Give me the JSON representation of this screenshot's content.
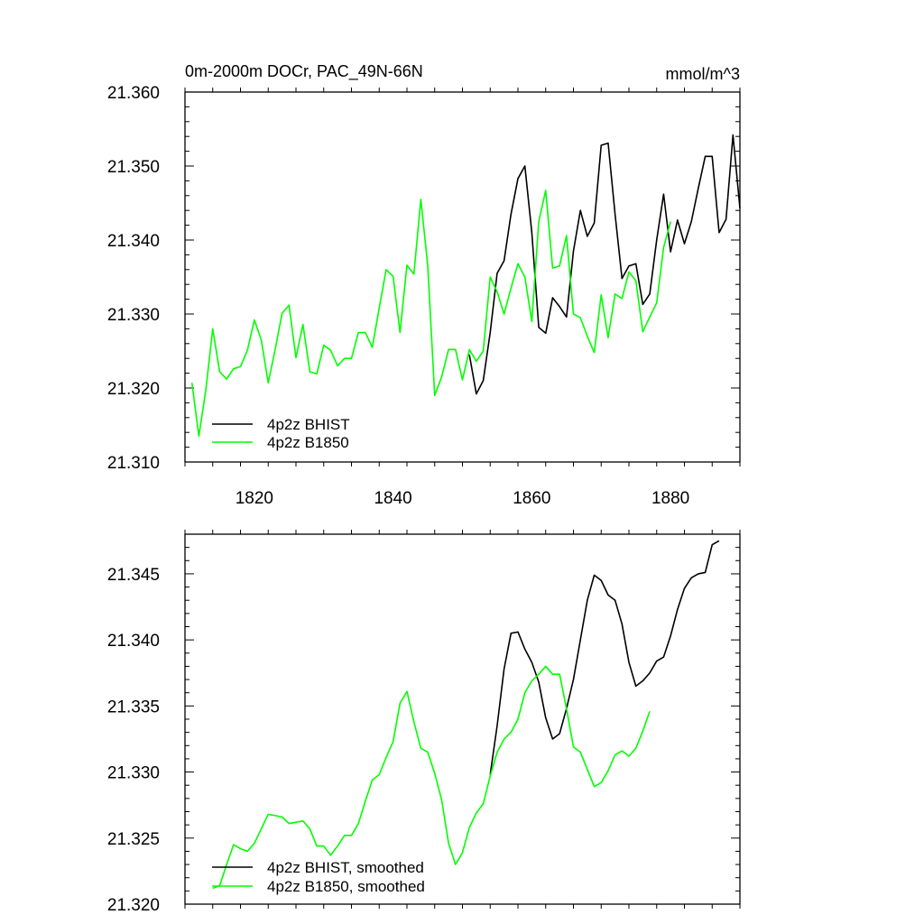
{
  "chart_data": [
    {
      "type": "line",
      "title": "0m-2000m DOCr, PAC_49N-66N",
      "units": "mmol/m^3",
      "xlim": [
        1810,
        1890
      ],
      "ylim": [
        21.31,
        21.36
      ],
      "x_ticks": [
        1820,
        1840,
        1860,
        1880
      ],
      "x_tick_labels": [
        "1820",
        "1840",
        "1860",
        "1880"
      ],
      "y_ticks": [
        21.31,
        21.32,
        21.33,
        21.34,
        21.35,
        21.36
      ],
      "y_tick_labels": [
        "21.310",
        "21.320",
        "21.330",
        "21.340",
        "21.350",
        "21.360"
      ],
      "legend_position": "bottom-left",
      "series": [
        {
          "name": "4p2z BHIST",
          "color": "#000000",
          "x": [
            1851,
            1852,
            1853,
            1854,
            1855,
            1856,
            1857,
            1858,
            1859,
            1860,
            1861,
            1862,
            1863,
            1864,
            1865,
            1866,
            1867,
            1868,
            1869,
            1870,
            1871,
            1872,
            1873,
            1874,
            1875,
            1876,
            1877,
            1878,
            1879,
            1880,
            1881,
            1882,
            1883,
            1884,
            1885,
            1886,
            1887,
            1888,
            1889,
            1890
          ],
          "values": [
            21.3245,
            21.3192,
            21.321,
            21.3275,
            21.3355,
            21.3372,
            21.3435,
            21.3483,
            21.35,
            21.341,
            21.3282,
            21.3274,
            21.3322,
            21.331,
            21.3296,
            21.3385,
            21.344,
            21.3405,
            21.3423,
            21.3528,
            21.3531,
            21.3435,
            21.3348,
            21.3365,
            21.3368,
            21.3313,
            21.3327,
            21.34,
            21.3462,
            21.3384,
            21.3427,
            21.3395,
            21.3425,
            21.347,
            21.3513,
            21.3513,
            21.341,
            21.3428,
            21.3542,
            21.3443
          ]
        },
        {
          "name": "4p2z B1850",
          "color": "#00ff00",
          "x": [
            1811,
            1812,
            1813,
            1814,
            1815,
            1816,
            1817,
            1818,
            1819,
            1820,
            1821,
            1822,
            1823,
            1824,
            1825,
            1826,
            1827,
            1828,
            1829,
            1830,
            1831,
            1832,
            1833,
            1834,
            1835,
            1836,
            1837,
            1838,
            1839,
            1840,
            1841,
            1842,
            1843,
            1844,
            1845,
            1846,
            1847,
            1848,
            1849,
            1850,
            1851,
            1852,
            1853,
            1854,
            1855,
            1856,
            1857,
            1858,
            1859,
            1860,
            1861,
            1862,
            1863,
            1864,
            1865,
            1866,
            1867,
            1868,
            1869,
            1870,
            1871,
            1872,
            1873,
            1874,
            1875,
            1876,
            1877,
            1878,
            1879,
            1880
          ],
          "values": [
            21.3207,
            21.3135,
            21.3197,
            21.328,
            21.3222,
            21.3212,
            21.3226,
            21.3229,
            21.3251,
            21.3292,
            21.3265,
            21.3207,
            21.3252,
            21.3301,
            21.3312,
            21.3241,
            21.3286,
            21.3222,
            21.3219,
            21.3258,
            21.3251,
            21.323,
            21.324,
            21.324,
            21.3275,
            21.3275,
            21.3255,
            21.3308,
            21.336,
            21.3351,
            21.3275,
            21.3366,
            21.3354,
            21.3455,
            21.3365,
            21.319,
            21.3215,
            21.3252,
            21.3252,
            21.3211,
            21.3252,
            21.3236,
            21.325,
            21.335,
            21.333,
            21.33,
            21.3335,
            21.3368,
            21.335,
            21.329,
            21.3425,
            21.3467,
            21.3362,
            21.3365,
            21.3406,
            21.33,
            21.3295,
            21.327,
            21.3248,
            21.3326,
            21.3268,
            21.3327,
            21.3321,
            21.3357,
            21.3345,
            21.3276,
            21.3296,
            21.3315,
            21.339,
            21.3425
          ]
        }
      ]
    },
    {
      "type": "line",
      "title": "",
      "xlim": [
        1810,
        1890
      ],
      "ylim": [
        21.32,
        21.348
      ],
      "x_ticks": [
        1820,
        1840,
        1860,
        1880
      ],
      "y_ticks": [
        21.32,
        21.325,
        21.33,
        21.335,
        21.34,
        21.345
      ],
      "y_tick_labels": [
        "21.320",
        "21.325",
        "21.330",
        "21.335",
        "21.340",
        "21.345"
      ],
      "legend_position": "bottom-left",
      "series": [
        {
          "name": "4p2z BHIST, smoothed",
          "color": "#000000",
          "x": [
            1854,
            1855,
            1856,
            1857,
            1858,
            1859,
            1860,
            1861,
            1862,
            1863,
            1864,
            1865,
            1866,
            1867,
            1868,
            1869,
            1870,
            1871,
            1872,
            1873,
            1874,
            1875,
            1876,
            1877,
            1878,
            1879,
            1880,
            1881,
            1882,
            1883,
            1884,
            1885,
            1886,
            1887
          ],
          "values": [
            21.3298,
            21.3335,
            21.3378,
            21.3405,
            21.3406,
            21.3393,
            21.3383,
            21.3368,
            21.3341,
            21.3325,
            21.3329,
            21.3348,
            21.337,
            21.34,
            21.343,
            21.3449,
            21.3445,
            21.3434,
            21.343,
            21.3412,
            21.3383,
            21.3365,
            21.3369,
            21.3375,
            21.3384,
            21.3387,
            21.3403,
            21.3423,
            21.3439,
            21.3447,
            21.345,
            21.3451,
            21.3472,
            21.3475
          ]
        },
        {
          "name": "4p2z B1850, smoothed",
          "color": "#00ff00",
          "x": [
            1814,
            1815,
            1816,
            1817,
            1818,
            1819,
            1820,
            1821,
            1822,
            1823,
            1824,
            1825,
            1826,
            1827,
            1828,
            1829,
            1830,
            1831,
            1832,
            1833,
            1834,
            1835,
            1836,
            1837,
            1838,
            1839,
            1840,
            1841,
            1842,
            1843,
            1844,
            1845,
            1846,
            1847,
            1848,
            1849,
            1850,
            1851,
            1852,
            1853,
            1854,
            1855,
            1856,
            1857,
            1858,
            1859,
            1860,
            1861,
            1862,
            1863,
            1864,
            1865,
            1866,
            1867,
            1868,
            1869,
            1870,
            1871,
            1872,
            1873,
            1874,
            1875,
            1876,
            1877
          ],
          "values": [
            21.3212,
            21.3214,
            21.323,
            21.3245,
            21.3242,
            21.324,
            21.3246,
            21.3257,
            21.3268,
            21.3267,
            21.3266,
            21.3261,
            21.3262,
            21.3263,
            21.3257,
            21.3244,
            21.3244,
            21.3237,
            21.3244,
            21.3252,
            21.3252,
            21.3261,
            21.3278,
            21.3294,
            21.3298,
            21.3311,
            21.3323,
            21.3352,
            21.3361,
            21.3338,
            21.3318,
            21.3315,
            21.3299,
            21.3279,
            21.3246,
            21.323,
            21.3239,
            21.3258,
            21.3269,
            21.3276,
            21.3297,
            21.3315,
            21.3325,
            21.333,
            21.334,
            21.336,
            21.3369,
            21.3374,
            21.338,
            21.3374,
            21.3374,
            21.3348,
            21.3319,
            21.3315,
            21.3302,
            21.3289,
            21.3292,
            21.3301,
            21.3313,
            21.3316,
            21.3312,
            21.3318,
            21.3331,
            21.3346
          ]
        }
      ]
    }
  ]
}
